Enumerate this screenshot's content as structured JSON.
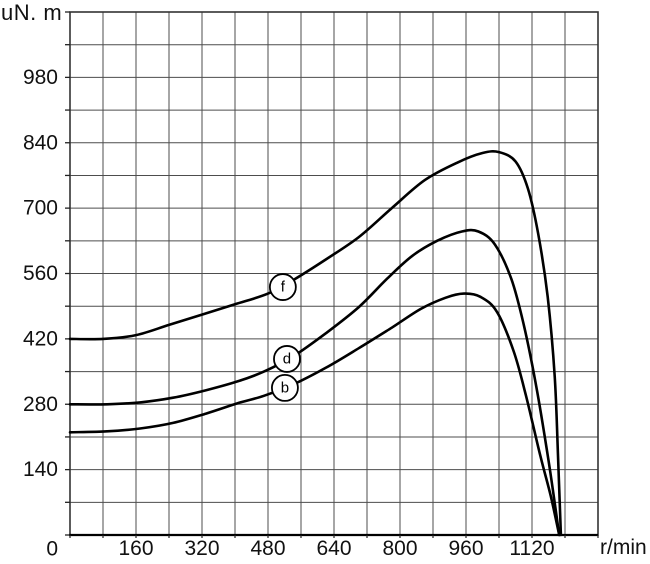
{
  "chart_data": {
    "type": "line",
    "title": "",
    "ylabel": "uN. m",
    "xlabel": "r/min",
    "xlim": [
      0,
      1280
    ],
    "ylim": [
      0,
      1120
    ],
    "x_grid_step": 80,
    "y_grid_step": 70,
    "grid": true,
    "legend_position": "labels-on-curves",
    "x_tick_labels": [
      {
        "value": 160,
        "label": "160"
      },
      {
        "value": 320,
        "label": "320"
      },
      {
        "value": 480,
        "label": "480"
      },
      {
        "value": 640,
        "label": "640"
      },
      {
        "value": 800,
        "label": "800"
      },
      {
        "value": 960,
        "label": "960"
      },
      {
        "value": 1120,
        "label": "1120"
      }
    ],
    "y_tick_labels": [
      {
        "value": 980,
        "label": "980"
      },
      {
        "value": 840,
        "label": "840"
      },
      {
        "value": 700,
        "label": "700"
      },
      {
        "value": 560,
        "label": "560"
      },
      {
        "value": 420,
        "label": "420"
      },
      {
        "value": 280,
        "label": "280"
      },
      {
        "value": 140,
        "label": "140"
      },
      {
        "value": 0,
        "label": "0"
      }
    ],
    "colors": {
      "curve": "#000000",
      "grid": "#4d4d4d",
      "border": "#333333",
      "text": "#111111",
      "marker_fill": "#ffffff"
    },
    "series": [
      {
        "name": "f",
        "marker": {
          "x": 516,
          "y": 531
        },
        "points": [
          [
            0,
            420
          ],
          [
            80,
            420
          ],
          [
            160,
            428
          ],
          [
            240,
            450
          ],
          [
            320,
            472
          ],
          [
            400,
            494
          ],
          [
            480,
            517
          ],
          [
            545,
            548
          ],
          [
            620,
            590
          ],
          [
            700,
            638
          ],
          [
            780,
            700
          ],
          [
            860,
            760
          ],
          [
            940,
            798
          ],
          [
            1000,
            818
          ],
          [
            1040,
            820
          ],
          [
            1080,
            800
          ],
          [
            1110,
            742
          ],
          [
            1135,
            645
          ],
          [
            1158,
            510
          ],
          [
            1175,
            340
          ],
          [
            1183,
            170
          ],
          [
            1190,
            0
          ]
        ]
      },
      {
        "name": "d",
        "marker": {
          "x": 526,
          "y": 377
        },
        "points": [
          [
            0,
            280
          ],
          [
            90,
            280
          ],
          [
            170,
            284
          ],
          [
            250,
            294
          ],
          [
            330,
            310
          ],
          [
            410,
            330
          ],
          [
            470,
            350
          ],
          [
            540,
            382
          ],
          [
            620,
            432
          ],
          [
            700,
            488
          ],
          [
            770,
            550
          ],
          [
            830,
            598
          ],
          [
            890,
            630
          ],
          [
            950,
            650
          ],
          [
            990,
            650
          ],
          [
            1030,
            622
          ],
          [
            1070,
            548
          ],
          [
            1100,
            450
          ],
          [
            1130,
            320
          ],
          [
            1160,
            160
          ],
          [
            1186,
            0
          ]
        ]
      },
      {
        "name": "b",
        "marker": {
          "x": 521,
          "y": 315
        },
        "points": [
          [
            0,
            220
          ],
          [
            90,
            222
          ],
          [
            170,
            228
          ],
          [
            250,
            240
          ],
          [
            330,
            260
          ],
          [
            410,
            283
          ],
          [
            470,
            298
          ],
          [
            540,
            322
          ],
          [
            620,
            358
          ],
          [
            700,
            400
          ],
          [
            780,
            444
          ],
          [
            850,
            484
          ],
          [
            910,
            508
          ],
          [
            955,
            517
          ],
          [
            995,
            510
          ],
          [
            1035,
            478
          ],
          [
            1075,
            395
          ],
          [
            1105,
            300
          ],
          [
            1140,
            170
          ],
          [
            1165,
            85
          ],
          [
            1186,
            0
          ]
        ]
      }
    ]
  },
  "labels": {
    "y_axis_unit": "uN. m",
    "x_axis_unit": "r/min"
  }
}
